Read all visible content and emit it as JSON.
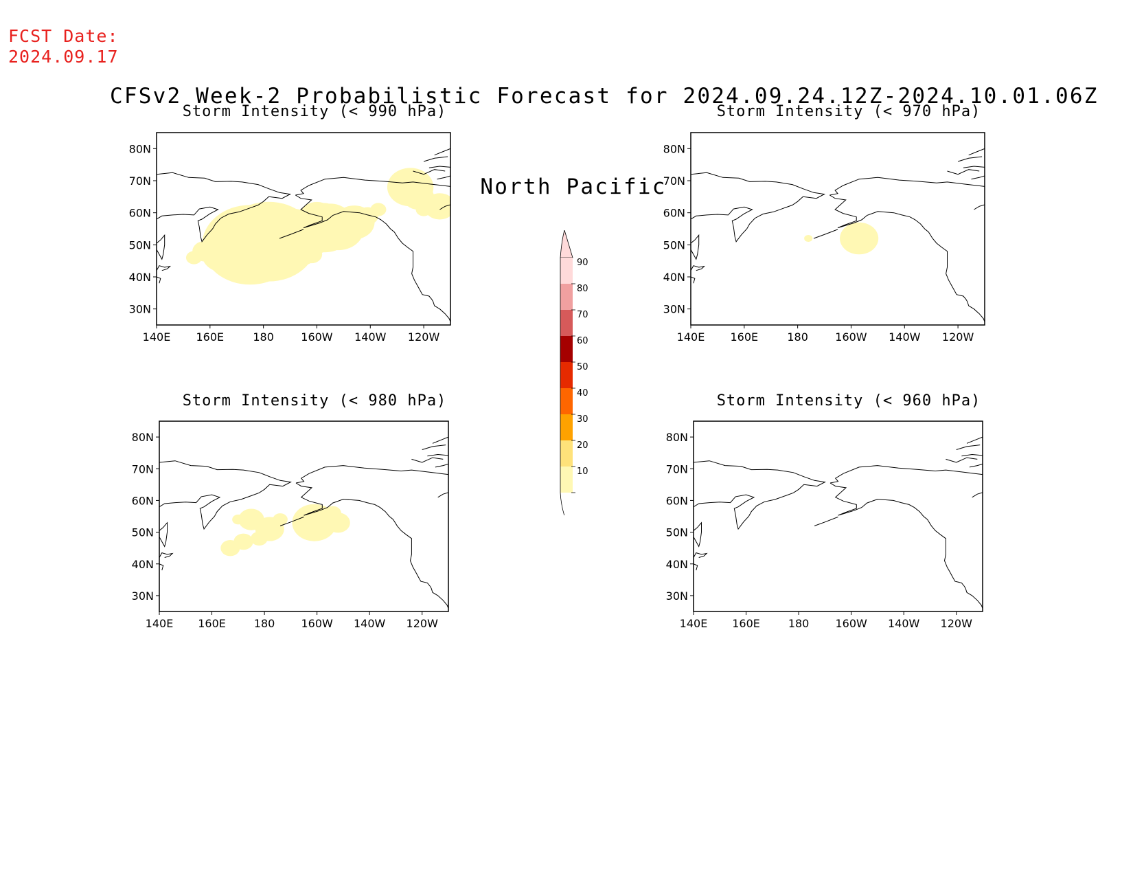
{
  "header": {
    "fcst_label": "FCST Date:",
    "fcst_date": "2024.09.17",
    "title_line1": "CFSv2 Week-2 Probabilistic Forecast for 2024.09.24.12Z-2024.10.01.06Z",
    "title_line2": "North Pacific"
  },
  "map_axes": {
    "lat_labels": [
      "80N",
      "70N",
      "60N",
      "50N",
      "40N",
      "30N"
    ],
    "lon_labels": [
      "140E",
      "160E",
      "180",
      "160W",
      "140W",
      "120W"
    ]
  },
  "panels": [
    {
      "title": "Storm Intensity (< 990 hPa)",
      "threshold_hPa": 990
    },
    {
      "title": "Storm Intensity (< 970 hPa)",
      "threshold_hPa": 970
    },
    {
      "title": "Storm Intensity (< 980 hPa)",
      "threshold_hPa": 980
    },
    {
      "title": "Storm Intensity (< 960 hPa)",
      "threshold_hPa": 960
    }
  ],
  "colorbar": {
    "levels": [
      "10",
      "20",
      "30",
      "40",
      "50",
      "60",
      "70",
      "80",
      "90"
    ],
    "colors": [
      "#fff8b4",
      "#ffe27a",
      "#ffa200",
      "#ff6600",
      "#e62a00",
      "#a50000",
      "#d65a5a",
      "#f0a0a0",
      "#ffdada"
    ]
  },
  "colors": {
    "fcst_text": "#e8211e",
    "coastline": "#000000"
  }
}
